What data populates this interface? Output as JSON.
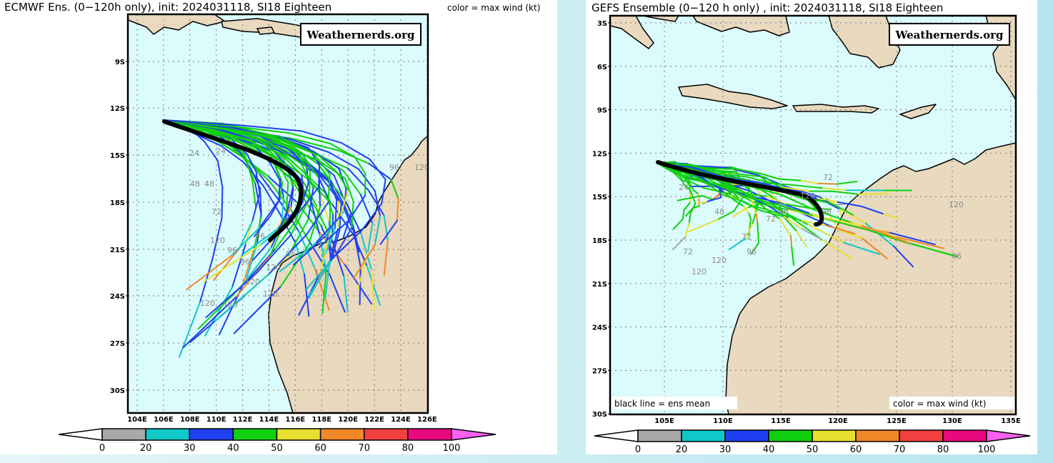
{
  "colors": {
    "ocean": "#dcfbfd",
    "land": "#e8d9bf",
    "mean_track": "#000000"
  },
  "left": {
    "title": "ECMWF Ens. (0−120h only), init: 2024031118, SI18 Eighteen",
    "note": "color = max wind (kt)",
    "watermark": "Weathernerds.org",
    "lat_labels": [
      "9S",
      "12S",
      "15S",
      "18S",
      "21S",
      "24S",
      "27S",
      "30S"
    ],
    "lon_labels": [
      "104E",
      "106E",
      "108E",
      "110E",
      "112E",
      "114E",
      "116E",
      "118E",
      "120E",
      "122E",
      "124E",
      "126E"
    ],
    "hour_labels": [
      "24",
      "48",
      "48",
      "72",
      "24",
      "96",
      "96",
      "96",
      "96",
      "120",
      "120",
      "120",
      "120",
      "120",
      "120",
      "96",
      "120",
      "120"
    ]
  },
  "right": {
    "title": "GEFS Ensemble (0−120 h only) , init: 2024031118, SI18 Eighteen",
    "watermark": "Weathernerds.org",
    "mean_note": "black line = ens mean",
    "color_note": "color = max wind (kt)",
    "lat_labels": [
      "3S",
      "6S",
      "9S",
      "12S",
      "15S",
      "18S",
      "21S",
      "24S",
      "27S",
      "30S"
    ],
    "lon_labels": [
      "105E",
      "110E",
      "115E",
      "120E",
      "125E",
      "130E",
      "135E"
    ],
    "hour_labels": [
      "24",
      "48",
      "72",
      "72",
      "96",
      "72",
      "120",
      "96",
      "120",
      "96",
      "72",
      "120",
      "96",
      "120"
    ]
  },
  "colorbar": {
    "labels": [
      "0",
      "20",
      "30",
      "40",
      "50",
      "60",
      "70",
      "80",
      "100"
    ],
    "colors": [
      "#a8a8a8",
      "#10c8c8",
      "#2040f0",
      "#10d010",
      "#e8e030",
      "#f08828",
      "#f04040",
      "#e80880"
    ],
    "under_color": "#ffffff",
    "over_color": "#f860f0"
  }
}
